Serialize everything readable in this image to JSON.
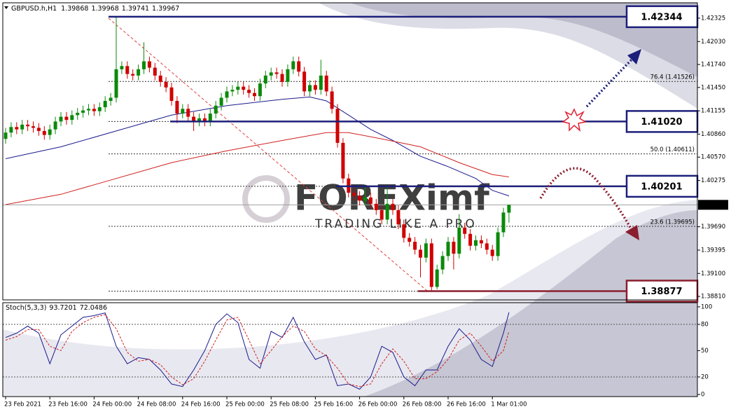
{
  "chart_data": [
    {
      "type": "candlestick",
      "title": "GBPUSD.h,H1",
      "watermark": "FOREXimf",
      "watermark_sub": "TRADING LIKE A PRO",
      "up_color": "#0a8a0a",
      "down_color": "#d00000",
      "categories": [
        "23 Feb 2021",
        null,
        null,
        null,
        null,
        null,
        null,
        null,
        "23 Feb 16:00",
        null,
        null,
        null,
        null,
        null,
        null,
        null,
        "24 Feb 00:00",
        null,
        null,
        null,
        null,
        null,
        null,
        null,
        "24 Feb 08:00",
        null,
        null,
        null,
        null,
        null,
        null,
        null,
        "24 Feb 16:00",
        null,
        null,
        null,
        null,
        null,
        null,
        null,
        "25 Feb 00:00",
        null,
        null,
        null,
        null,
        null,
        null,
        null,
        "25 Feb 08:00",
        null,
        null,
        null,
        null,
        null,
        null,
        null,
        "25 Feb 16:00",
        null,
        null,
        null,
        null,
        null,
        null,
        null,
        "26 Feb 00:00",
        null,
        null,
        null,
        null,
        null,
        null,
        null,
        "26 Feb 08:00",
        null,
        null,
        null,
        null,
        null,
        null,
        null,
        "26 Feb 16:00",
        null,
        null,
        null,
        null,
        null,
        null,
        null,
        "1 Mar 01:00",
        null,
        null,
        null
      ],
      "open": [
        1.408,
        1.4088,
        1.4095,
        1.4092,
        1.4098,
        1.4096,
        1.4094,
        1.409,
        1.4085,
        1.4092,
        1.4102,
        1.4108,
        1.4104,
        1.411,
        1.4113,
        1.4116,
        1.4118,
        1.4115,
        1.412,
        1.4128,
        1.4132,
        1.4168,
        1.4172,
        1.4162,
        1.416,
        1.4168,
        1.4178,
        1.417,
        1.416,
        1.4152,
        1.4145,
        1.4128,
        1.4112,
        1.4118,
        1.4108,
        1.4102,
        1.4106,
        1.4102,
        1.4112,
        1.4122,
        1.4132,
        1.414,
        1.4142,
        1.4146,
        1.4142,
        1.4138,
        1.4134,
        1.415,
        1.416,
        1.4164,
        1.4162,
        1.4152,
        1.4168,
        1.4178,
        1.4165,
        1.414,
        1.4148,
        1.4142,
        1.416,
        1.414,
        1.4118,
        1.4075,
        1.403,
        1.4012,
        1.4008,
        1.4002,
        1.4006,
        1.3998,
        1.399,
        1.3978,
        1.3998,
        1.399,
        1.3972,
        1.3955,
        1.395,
        1.394,
        1.393,
        1.3948,
        1.3893,
        1.3915,
        1.3932,
        1.395,
        1.3935,
        1.3968,
        1.396,
        1.3945,
        1.3952,
        1.3948,
        1.394,
        1.3932,
        1.3962,
        1.39868
      ],
      "high": [
        1.4094,
        1.4101,
        1.4101,
        1.4104,
        1.4104,
        1.4102,
        1.41,
        1.4096,
        1.4098,
        1.4108,
        1.4114,
        1.4114,
        1.4116,
        1.4119,
        1.4122,
        1.4124,
        1.4124,
        1.4126,
        1.4134,
        1.4138,
        1.42344,
        1.4178,
        1.4178,
        1.4168,
        1.4174,
        1.4202,
        1.4184,
        1.4176,
        1.4166,
        1.4158,
        1.4151,
        1.4134,
        1.4124,
        1.4124,
        1.4114,
        1.4112,
        1.4112,
        1.4118,
        1.4128,
        1.4138,
        1.4146,
        1.4148,
        1.4152,
        1.4152,
        1.4148,
        1.4144,
        1.4156,
        1.4166,
        1.417,
        1.417,
        1.4168,
        1.4174,
        1.4184,
        1.4184,
        1.4171,
        1.4154,
        1.4154,
        1.418,
        1.4166,
        1.4146,
        1.4124,
        1.4081,
        1.4036,
        1.4018,
        1.4014,
        1.402,
        1.4012,
        1.4004,
        1.3996,
        1.402,
        1.4004,
        1.3996,
        1.3978,
        1.3961,
        1.3956,
        1.3946,
        1.3954,
        1.3954,
        1.3921,
        1.3938,
        1.3956,
        1.3956,
        1.3985,
        1.3974,
        1.3966,
        1.3958,
        1.3958,
        1.3954,
        1.3946,
        1.3968,
        1.3993,
        1.39968
      ],
      "low": [
        1.4074,
        1.4082,
        1.4086,
        1.4086,
        1.409,
        1.4088,
        1.4084,
        1.4079,
        1.4079,
        1.4086,
        1.4096,
        1.4098,
        1.4098,
        1.4104,
        1.4107,
        1.411,
        1.4109,
        1.4109,
        1.4114,
        1.4122,
        1.4126,
        1.4162,
        1.4156,
        1.4154,
        1.4154,
        1.4162,
        1.4164,
        1.4154,
        1.4146,
        1.4139,
        1.4122,
        1.41,
        1.4106,
        1.4102,
        1.409,
        1.4096,
        1.4096,
        1.4096,
        1.4106,
        1.4116,
        1.4126,
        1.4134,
        1.4136,
        1.4136,
        1.4132,
        1.4128,
        1.4128,
        1.4144,
        1.4154,
        1.4156,
        1.4146,
        1.4146,
        1.4162,
        1.4159,
        1.4134,
        1.4134,
        1.4136,
        1.4136,
        1.4134,
        1.4112,
        1.4069,
        1.4024,
        1.4006,
        1.4002,
        1.3996,
        1.3996,
        1.3992,
        1.3984,
        1.3972,
        1.3972,
        1.3984,
        1.3966,
        1.3949,
        1.3944,
        1.3934,
        1.3905,
        1.3924,
        1.38877,
        1.389,
        1.3909,
        1.3926,
        1.3915,
        1.3929,
        1.3954,
        1.3939,
        1.3939,
        1.3942,
        1.3934,
        1.3926,
        1.3926,
        1.3956,
        1.39741
      ],
      "close": [
        1.4088,
        1.4095,
        1.4092,
        1.4098,
        1.4096,
        1.4094,
        1.409,
        1.4085,
        1.4092,
        1.4102,
        1.4108,
        1.4104,
        1.411,
        1.4113,
        1.4116,
        1.4118,
        1.4115,
        1.412,
        1.4128,
        1.4132,
        1.4168,
        1.4172,
        1.4162,
        1.416,
        1.4168,
        1.4178,
        1.417,
        1.416,
        1.4152,
        1.4145,
        1.4128,
        1.4112,
        1.4118,
        1.4108,
        1.4102,
        1.4106,
        1.4102,
        1.4112,
        1.4122,
        1.4132,
        1.414,
        1.4142,
        1.4146,
        1.4142,
        1.4138,
        1.4134,
        1.415,
        1.416,
        1.4164,
        1.4162,
        1.4152,
        1.4168,
        1.4178,
        1.4165,
        1.414,
        1.4148,
        1.4142,
        1.416,
        1.414,
        1.4118,
        1.4075,
        1.403,
        1.4012,
        1.4008,
        1.4002,
        1.4006,
        1.3998,
        1.399,
        1.3978,
        1.3998,
        1.399,
        1.3972,
        1.3955,
        1.395,
        1.394,
        1.393,
        1.3948,
        1.3893,
        1.3915,
        1.3932,
        1.395,
        1.3935,
        1.3968,
        1.396,
        1.3945,
        1.3952,
        1.3948,
        1.394,
        1.3932,
        1.3962,
        1.3987,
        1.39967
      ],
      "series": [
        {
          "color": "#1a1a8c",
          "x": [
            0,
            10,
            20,
            30,
            40,
            50,
            55,
            58,
            62,
            66,
            70,
            75,
            80,
            85,
            88,
            91
          ],
          "values": [
            1.4055,
            1.407,
            1.409,
            1.411,
            1.4122,
            1.413,
            1.4133,
            1.4128,
            1.411,
            1.4092,
            1.4078,
            1.4058,
            1.4045,
            1.403,
            1.4015,
            1.4008
          ]
        },
        {
          "color": "#d02020",
          "x": [
            0,
            10,
            20,
            30,
            40,
            50,
            58,
            62,
            68,
            75,
            82,
            88,
            91
          ],
          "values": [
            1.3997,
            1.401,
            1.403,
            1.405,
            1.4065,
            1.4078,
            1.4088,
            1.4088,
            1.408,
            1.407,
            1.405,
            1.4035,
            1.4032
          ]
        }
      ],
      "levels": [
        {
          "value": 1.42344,
          "color": "#1c1f7a"
        },
        {
          "value": 1.4102,
          "label": "1.41020",
          "color": "#1c1f7a"
        },
        {
          "value": 1.40201,
          "color": "#1c1f7a"
        },
        {
          "value": 1.38877,
          "color": "#8b1e2e"
        }
      ],
      "fibo": [
        {
          "value": 1.41526,
          "label": "76.4 (1.41526)"
        },
        1.4102,
        {
          "value": 1.40611,
          "label": "50.0 (1.40611)"
        },
        1.40201,
        {
          "value": 1.39695,
          "label": "23.6 (1.39695)"
        },
        1.38877
      ],
      "ylim": [
        1.38766,
        1.42484
      ],
      "yticks": [
        1.42325,
        {
          "value": 1.4203,
          "label": "1.42030"
        },
        {
          "value": 1.4174,
          "label": "1.41740"
        },
        {
          "value": 1.4145,
          "label": "1.41450"
        },
        1.41155,
        {
          "value": 1.4086,
          "label": "1.40860"
        },
        {
          "value": 1.4057,
          "label": "1.40570"
        },
        1.40275,
        {
          "value": 1.3969,
          "label": "1.39690"
        },
        1.39395,
        {
          "value": 1.391,
          "label": "1.39100"
        },
        {
          "value": 1.3881,
          "label": "1.38810"
        }
      ]
    },
    {
      "type": "line",
      "title": "Stoch(5,3,3)",
      "x": [
        0,
        2,
        4,
        6,
        8,
        10,
        12,
        14,
        16,
        18,
        20,
        22,
        24,
        26,
        28,
        30,
        32,
        34,
        36,
        38,
        40,
        42,
        44,
        46,
        48,
        50,
        52,
        54,
        56,
        58,
        60,
        62,
        64,
        66,
        68,
        70,
        72,
        74,
        76,
        78,
        80,
        82,
        84,
        86,
        88,
        90,
        91
      ],
      "series": [
        {
          "color": "#1a1a8c",
          "dash": false,
          "values": [
            65,
            70,
            78,
            70,
            35,
            68,
            78,
            88,
            90,
            93,
            55,
            35,
            42,
            40,
            28,
            12,
            9,
            28,
            50,
            80,
            92,
            82,
            40,
            30,
            72,
            65,
            88,
            60,
            40,
            45,
            10,
            12,
            6,
            20,
            55,
            48,
            20,
            10,
            28,
            28,
            55,
            75,
            62,
            40,
            32,
            70,
            93.7201
          ]
        },
        {
          "color": "#d02020",
          "dash": true,
          "values": [
            62,
            66,
            74,
            74,
            55,
            50,
            72,
            82,
            88,
            91,
            75,
            48,
            38,
            40,
            34,
            20,
            11,
            18,
            38,
            62,
            85,
            88,
            62,
            35,
            50,
            66,
            78,
            72,
            52,
            44,
            30,
            12,
            9,
            12,
            35,
            52,
            38,
            18,
            18,
            26,
            40,
            62,
            70,
            55,
            38,
            50,
            72.0486
          ]
        }
      ],
      "levels": [
        20,
        80
      ],
      "ylim": [
        -2.4,
        104.7
      ],
      "yticks": [
        0,
        20,
        50,
        80,
        100
      ]
    }
  ]
}
